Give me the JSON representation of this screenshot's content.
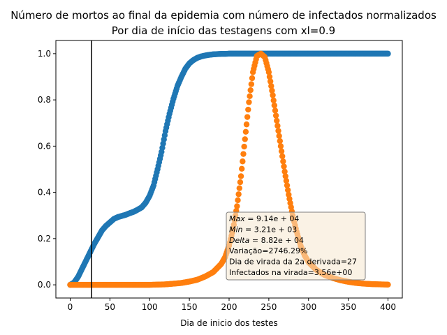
{
  "chart_data": {
    "type": "scatter",
    "title": "Número de mortos ao final da epidemia com número de infectados normalizados",
    "subtitle": "Por dia de início das testagens com xl=0.9",
    "xlabel": "Dia de inicio dos testes",
    "ylabel": "",
    "xlim": [
      -18,
      418
    ],
    "ylim": [
      -0.057,
      1.057
    ],
    "x_ticks": [
      "0",
      "50",
      "100",
      "150",
      "200",
      "250",
      "300",
      "350",
      "400"
    ],
    "y_ticks": [
      "0.0",
      "0.2",
      "0.4",
      "0.6",
      "0.8",
      "1.0"
    ],
    "vline_x": 27,
    "series": [
      {
        "color": "#1f77b4",
        "x": [
          0,
          5,
          10,
          15,
          20,
          25,
          30,
          35,
          40,
          45,
          50,
          55,
          60,
          65,
          70,
          75,
          80,
          85,
          90,
          95,
          100,
          105,
          110,
          115,
          120,
          125,
          130,
          135,
          140,
          145,
          150,
          155,
          160,
          165,
          170,
          175,
          180,
          185,
          190,
          195,
          200,
          210,
          220,
          230,
          240,
          260,
          280,
          300,
          320,
          340,
          360,
          380,
          400
        ],
        "y": [
          0.0,
          0.01,
          0.035,
          0.07,
          0.105,
          0.14,
          0.175,
          0.205,
          0.235,
          0.255,
          0.27,
          0.285,
          0.293,
          0.298,
          0.303,
          0.31,
          0.316,
          0.325,
          0.335,
          0.355,
          0.385,
          0.43,
          0.5,
          0.575,
          0.665,
          0.74,
          0.805,
          0.86,
          0.9,
          0.935,
          0.958,
          0.972,
          0.982,
          0.988,
          0.992,
          0.995,
          0.997,
          0.998,
          0.999,
          0.999,
          1.0,
          1.0,
          1.0,
          1.0,
          1.0,
          1.0,
          1.0,
          1.0,
          1.0,
          1.0,
          1.0,
          1.0,
          1.0
        ]
      },
      {
        "color": "#ff7f0e",
        "x": [
          0,
          20,
          40,
          60,
          80,
          100,
          120,
          140,
          150,
          160,
          170,
          180,
          190,
          195,
          200,
          205,
          210,
          215,
          220,
          225,
          230,
          235,
          240,
          245,
          250,
          255,
          260,
          265,
          270,
          275,
          280,
          285,
          290,
          295,
          300,
          310,
          320,
          330,
          340,
          350,
          360,
          370,
          380,
          390,
          400
        ],
        "y": [
          0.0,
          0.0,
          0.0,
          0.0,
          0.0,
          0.0,
          0.002,
          0.008,
          0.014,
          0.022,
          0.036,
          0.055,
          0.09,
          0.12,
          0.17,
          0.24,
          0.34,
          0.47,
          0.63,
          0.79,
          0.92,
          0.99,
          1.0,
          0.985,
          0.92,
          0.82,
          0.71,
          0.6,
          0.49,
          0.39,
          0.3,
          0.23,
          0.17,
          0.128,
          0.098,
          0.064,
          0.043,
          0.03,
          0.02,
          0.013,
          0.008,
          0.005,
          0.003,
          0.002,
          0.001
        ]
      }
    ],
    "annotation": {
      "lines": [
        {
          "it": "Max",
          "rest": " = 9.14e + 04"
        },
        {
          "it": "Min",
          "rest": " = 3.21e + 03"
        },
        {
          "it": "Delta",
          "rest": " = 8.82e + 04"
        },
        {
          "it": "",
          "rest": "Variação=2746.29%"
        },
        {
          "it": "",
          "rest": "Dia de virada da 2a derivada=27"
        },
        {
          "it": "",
          "rest": "Infectados na virada=3.56e+00"
        }
      ],
      "box_color": "#f6e7cf",
      "edge_color": "#7f7f7f"
    }
  }
}
